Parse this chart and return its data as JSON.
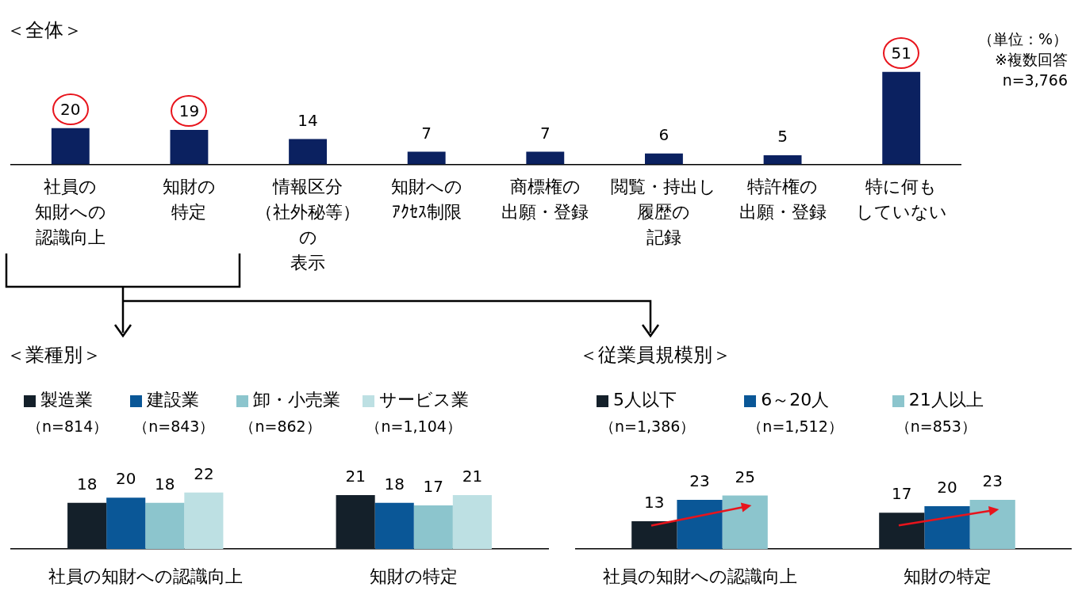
{
  "chart_data": [
    {
      "type": "bar",
      "title": "＜全体＞",
      "categories": [
        "社員の知財への認識向上",
        "知財の特定",
        "情報区分（社外秘等）の表示",
        "知財へのｱｸｾｽ制限",
        "商標権の出願・登録",
        "閲覧・持出し履歴の記録",
        "特許権の出願・登録",
        "特に何もしていない"
      ],
      "values": [
        20,
        19,
        14,
        7,
        7,
        6,
        5,
        51
      ],
      "color": "#0b2160",
      "data_labels": true,
      "grid": false,
      "annotations": [
        "（単位：%）",
        "※複数回答",
        "n=3,766"
      ]
    },
    {
      "type": "bar",
      "title": "＜業種別＞",
      "categories": [
        "社員の知財への認識向上",
        "知財の特定"
      ],
      "series": [
        {
          "name": "製造業（n=814）",
          "color": "#14202a",
          "values": [
            18,
            21
          ]
        },
        {
          "name": "建設業（n=843）",
          "color": "#0a5797",
          "values": [
            20,
            18
          ]
        },
        {
          "name": "卸・小売業（n=862）",
          "color": "#8cc5cd",
          "values": [
            18,
            17
          ]
        },
        {
          "name": "サービス業（n=1,104）",
          "color": "#bde0e3",
          "values": [
            22,
            21
          ]
        }
      ],
      "data_labels": true,
      "grid": false,
      "legend": "top"
    },
    {
      "type": "bar",
      "title": "＜従業員規模別＞",
      "categories": [
        "社員の知財への認識向上",
        "知財の特定"
      ],
      "series": [
        {
          "name": "5人以下（n=1,386）",
          "color": "#14202a",
          "values": [
            13,
            17
          ]
        },
        {
          "name": "6～20人（n=1,512）",
          "color": "#0a5797",
          "values": [
            23,
            20
          ]
        },
        {
          "name": "21人以上（n=853）",
          "color": "#8cc5cd",
          "values": [
            25,
            23
          ]
        }
      ],
      "data_labels": true,
      "grid": false,
      "legend": "top"
    }
  ]
}
